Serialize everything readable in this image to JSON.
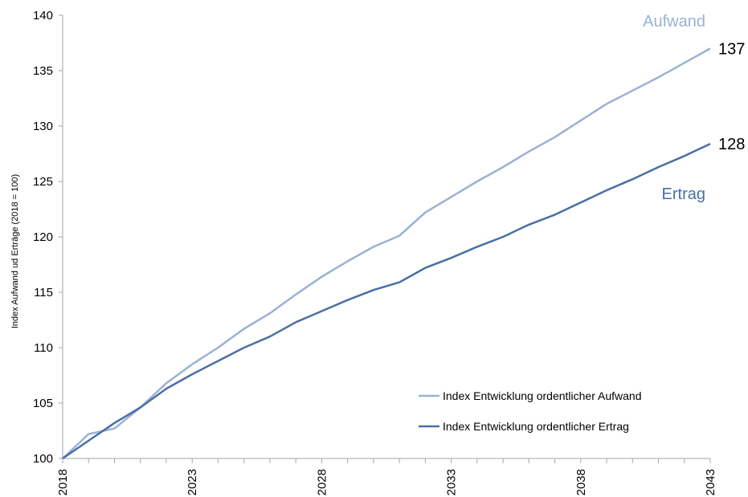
{
  "chart_data": {
    "type": "line",
    "ylabel": "Index Aufwand ud Erträge (2018 = 100)",
    "xlabel": "",
    "ylim": [
      100,
      140
    ],
    "xlim": [
      2018,
      2043
    ],
    "yticks": [
      "100",
      "105",
      "110",
      "115",
      "120",
      "125",
      "130",
      "135",
      "140"
    ],
    "ytick_values": [
      100,
      105,
      110,
      115,
      120,
      125,
      130,
      135,
      140
    ],
    "xticks": [
      "2018",
      "2023",
      "2028",
      "2033",
      "2038",
      "2043"
    ],
    "xtick_values": [
      2018,
      2023,
      2028,
      2033,
      2038,
      2043
    ],
    "grid": false,
    "legend_position": "bottom-right",
    "x": [
      2018,
      2019,
      2020,
      2021,
      2022,
      2023,
      2024,
      2025,
      2026,
      2027,
      2028,
      2029,
      2030,
      2031,
      2032,
      2033,
      2034,
      2035,
      2036,
      2037,
      2038,
      2039,
      2040,
      2041,
      2042,
      2043
    ],
    "series": [
      {
        "name": "Index Entwicklung ordentlicher Aufwand",
        "color": "#9bb1d4",
        "end_label": "Aufwand",
        "end_value_label": "137",
        "values": [
          100.0,
          102.2,
          102.7,
          104.6,
          106.8,
          108.5,
          110.0,
          111.7,
          113.1,
          114.8,
          116.4,
          117.8,
          119.1,
          120.1,
          122.2,
          123.6,
          125.0,
          126.3,
          127.7,
          129.0,
          130.5,
          132.0,
          133.2,
          134.4,
          135.7,
          137.0
        ]
      },
      {
        "name": "Index Entwicklung ordentlicher Ertrag",
        "color": "#4a6fa5",
        "end_label": "Ertrag",
        "end_value_label": "128",
        "values": [
          100.0,
          101.6,
          103.2,
          104.6,
          106.3,
          107.6,
          108.8,
          110.0,
          111.0,
          112.3,
          113.3,
          114.3,
          115.2,
          115.9,
          117.2,
          118.1,
          119.1,
          120.0,
          121.1,
          122.0,
          123.1,
          124.2,
          125.2,
          126.3,
          127.3,
          128.4
        ]
      }
    ]
  }
}
